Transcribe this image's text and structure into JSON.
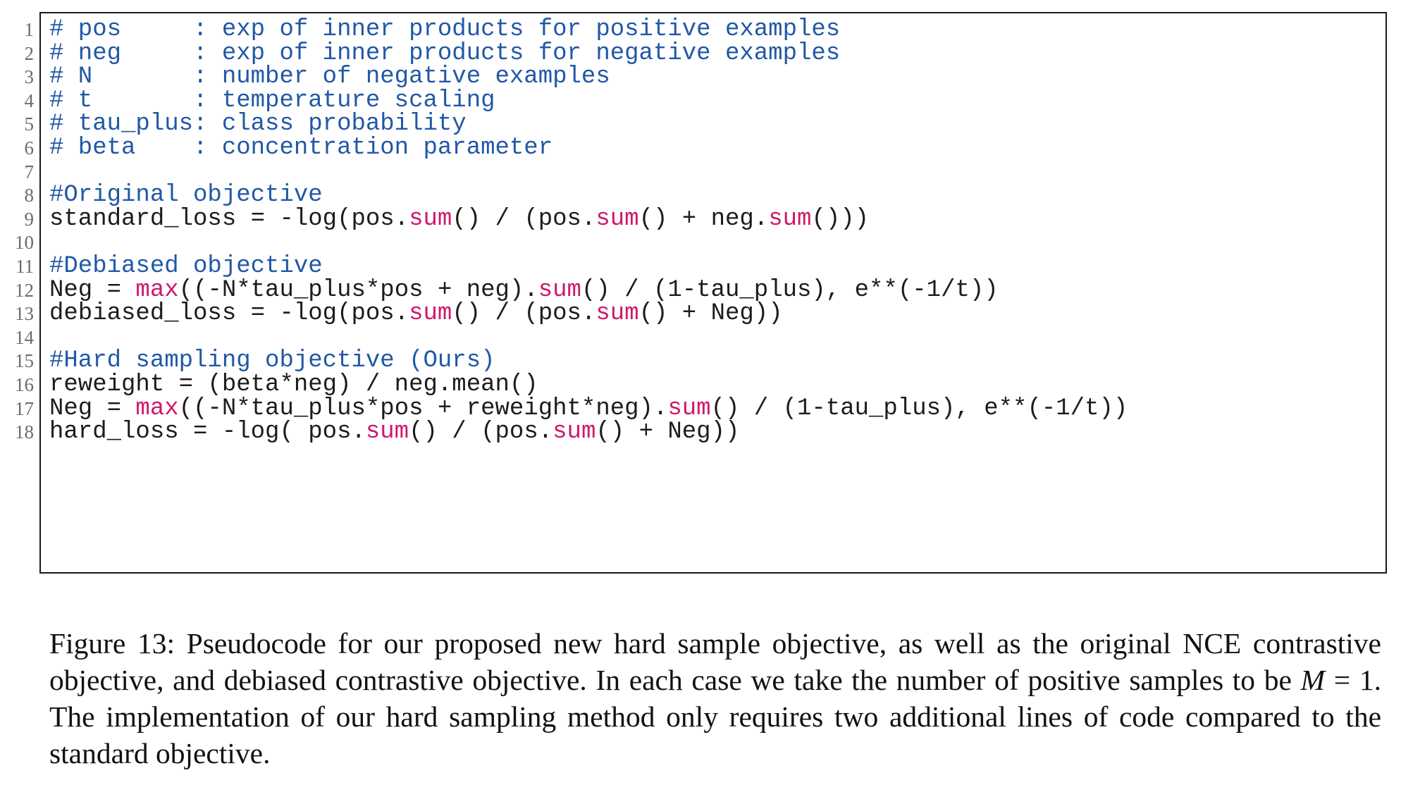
{
  "code": {
    "colors": {
      "comment": "#2158a6",
      "function": "#d0186b",
      "text": "#1c1c1c",
      "line_number": "#6b6b6b"
    },
    "lines": [
      {
        "n": "1",
        "segments": [
          {
            "t": "# pos     : exp of inner products for positive examples",
            "k": "comment"
          }
        ]
      },
      {
        "n": "2",
        "segments": [
          {
            "t": "# neg     : exp of inner products for negative examples",
            "k": "comment"
          }
        ]
      },
      {
        "n": "3",
        "segments": [
          {
            "t": "# N       : number of negative examples",
            "k": "comment"
          }
        ]
      },
      {
        "n": "4",
        "segments": [
          {
            "t": "# t       : temperature scaling",
            "k": "comment"
          }
        ]
      },
      {
        "n": "5",
        "segments": [
          {
            "t": "# tau_plus: class probability",
            "k": "comment"
          }
        ]
      },
      {
        "n": "6",
        "segments": [
          {
            "t": "# beta    : concentration parameter",
            "k": "comment"
          }
        ]
      },
      {
        "n": "7",
        "segments": []
      },
      {
        "n": "8",
        "segments": [
          {
            "t": "#Original objective",
            "k": "comment"
          }
        ]
      },
      {
        "n": "9",
        "segments": [
          {
            "t": "standard_loss = -log(pos.",
            "k": "plain"
          },
          {
            "t": "sum",
            "k": "fn"
          },
          {
            "t": "() / (pos.",
            "k": "plain"
          },
          {
            "t": "sum",
            "k": "fn"
          },
          {
            "t": "() + neg.",
            "k": "plain"
          },
          {
            "t": "sum",
            "k": "fn"
          },
          {
            "t": "()))",
            "k": "plain"
          }
        ]
      },
      {
        "n": "10",
        "segments": []
      },
      {
        "n": "11",
        "segments": [
          {
            "t": "#Debiased objective",
            "k": "comment"
          }
        ]
      },
      {
        "n": "12",
        "segments": [
          {
            "t": "Neg = ",
            "k": "plain"
          },
          {
            "t": "max",
            "k": "fn"
          },
          {
            "t": "((-N*tau_plus*pos + neg).",
            "k": "plain"
          },
          {
            "t": "sum",
            "k": "fn"
          },
          {
            "t": "() / (1-tau_plus), e**(-1/t))",
            "k": "plain"
          }
        ]
      },
      {
        "n": "13",
        "segments": [
          {
            "t": "debiased_loss = -log(pos.",
            "k": "plain"
          },
          {
            "t": "sum",
            "k": "fn"
          },
          {
            "t": "() / (pos.",
            "k": "plain"
          },
          {
            "t": "sum",
            "k": "fn"
          },
          {
            "t": "() + Neg))",
            "k": "plain"
          }
        ]
      },
      {
        "n": "14",
        "segments": []
      },
      {
        "n": "15",
        "segments": [
          {
            "t": "#Hard sampling objective (Ours)",
            "k": "comment"
          }
        ]
      },
      {
        "n": "16",
        "segments": [
          {
            "t": "reweight = (beta*neg) / neg.mean()",
            "k": "plain"
          }
        ]
      },
      {
        "n": "17",
        "segments": [
          {
            "t": "Neg = ",
            "k": "plain"
          },
          {
            "t": "max",
            "k": "fn"
          },
          {
            "t": "((-N*tau_plus*pos + reweight*neg).",
            "k": "plain"
          },
          {
            "t": "sum",
            "k": "fn"
          },
          {
            "t": "() / (1-tau_plus), e**(-1/t))",
            "k": "plain"
          }
        ]
      },
      {
        "n": "18",
        "segments": [
          {
            "t": "hard_loss = -log( pos.",
            "k": "plain"
          },
          {
            "t": "sum",
            "k": "fn"
          },
          {
            "t": "() / (pos.",
            "k": "plain"
          },
          {
            "t": "sum",
            "k": "fn"
          },
          {
            "t": "() + Neg))",
            "k": "plain"
          }
        ]
      }
    ]
  },
  "caption": {
    "label": "Figure 13:",
    "text_before_math": " Pseudocode for our proposed new hard sample objective, as well as the original NCE contrastive objective, and debiased contrastive objective. In each case we take the number of positive samples to be ",
    "math_var": "M",
    "math_rest": " = 1",
    "text_after_math": ". The implementation of our hard sampling method only requires two additional lines of code compared to the standard objective."
  }
}
